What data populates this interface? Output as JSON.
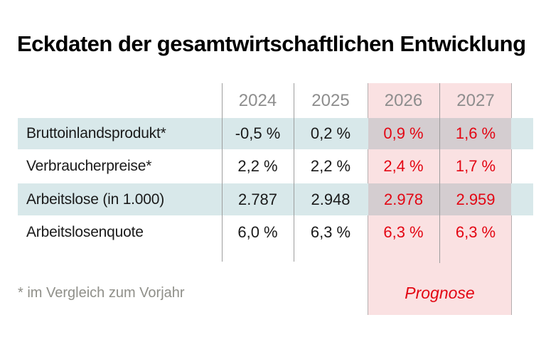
{
  "title": "Eckdaten der gesamtwirtschaftlichen Entwicklung",
  "chart_data": {
    "type": "table",
    "title": "Eckdaten der gesamtwirtschaftlichen Entwicklung",
    "columns": [
      "2024",
      "2025",
      "2026",
      "2027"
    ],
    "forecast_columns": [
      "2026",
      "2027"
    ],
    "rows": [
      {
        "label": "Bruttoinlandsprodukt*",
        "values": [
          "-0,5 %",
          "0,2 %",
          "0,9 %",
          "1,6 %"
        ]
      },
      {
        "label": "Verbraucherpreise*",
        "values": [
          "2,2 %",
          "2,2 %",
          "2,4 %",
          "1,7 %"
        ]
      },
      {
        "label": "Arbeitslose (in 1.000)",
        "values": [
          "2.787",
          "2.948",
          "2.978",
          "2.959"
        ]
      },
      {
        "label": "Arbeitslosenquote",
        "values": [
          "6,0 %",
          "6,3 %",
          "6,3 %",
          "6,3 %"
        ]
      }
    ],
    "forecast_label": "Prognose",
    "footnote": "* im Vergleich zum Vorjahr"
  },
  "header": {
    "y2024": "2024",
    "y2025": "2025",
    "y2026": "2026",
    "y2027": "2027"
  },
  "footer": {
    "footnote": "* im Vergleich zum Vorjahr",
    "forecast_label": "Prognose"
  },
  "colors": {
    "accent_red": "#e30613",
    "row_blue": "#d8e8ea",
    "forecast_pink": "#fae1e2",
    "overlap_gray": "#d4cdd0",
    "year_gray": "#8d8d8d",
    "footnote_gray": "#8f8f89",
    "line_gray": "#9e9e9e",
    "band_edge": "#b5aeaf",
    "text": "#1a1a1a"
  }
}
